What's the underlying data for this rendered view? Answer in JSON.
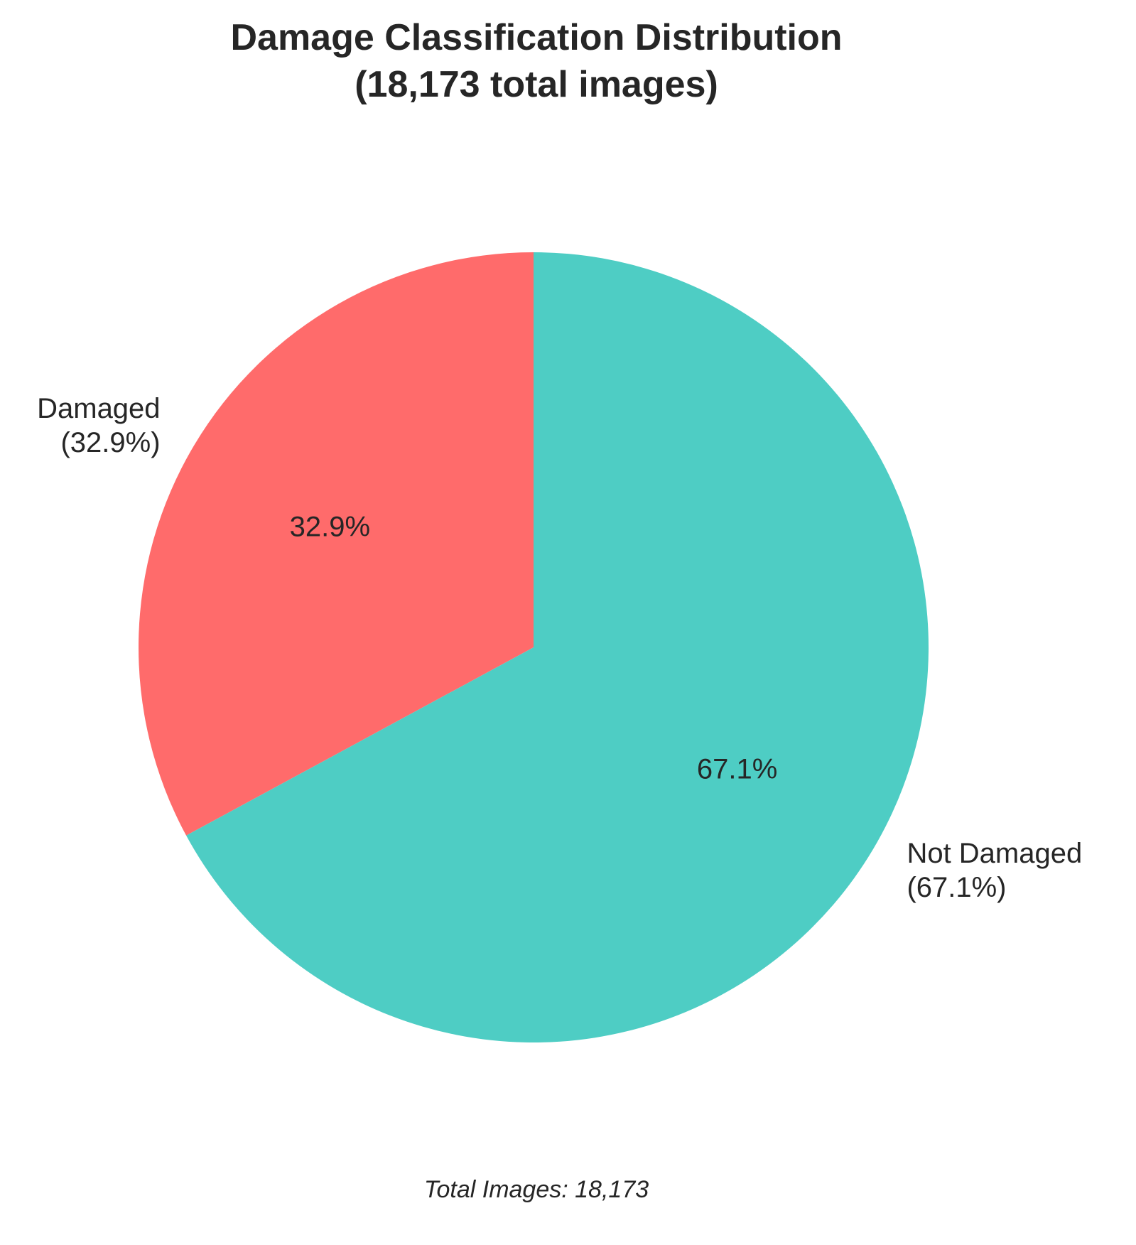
{
  "chart_data": {
    "type": "pie",
    "title_lines": [
      "Damage Classification Distribution",
      "(18,173 total images)"
    ],
    "slices": [
      {
        "name": "Damaged",
        "value": 32.9,
        "outer_label_lines": [
          "Damaged",
          "(32.9%)"
        ],
        "pct_label": "32.9%",
        "color": "#ff6b6b"
      },
      {
        "name": "Not Damaged",
        "value": 67.1,
        "outer_label_lines": [
          "Not Damaged",
          "(67.1%)"
        ],
        "pct_label": "67.1%",
        "color": "#4ecdc4"
      }
    ],
    "start_angle_deg": 90,
    "direction": "counterclockwise",
    "footer": "Total Images: 18,173"
  }
}
